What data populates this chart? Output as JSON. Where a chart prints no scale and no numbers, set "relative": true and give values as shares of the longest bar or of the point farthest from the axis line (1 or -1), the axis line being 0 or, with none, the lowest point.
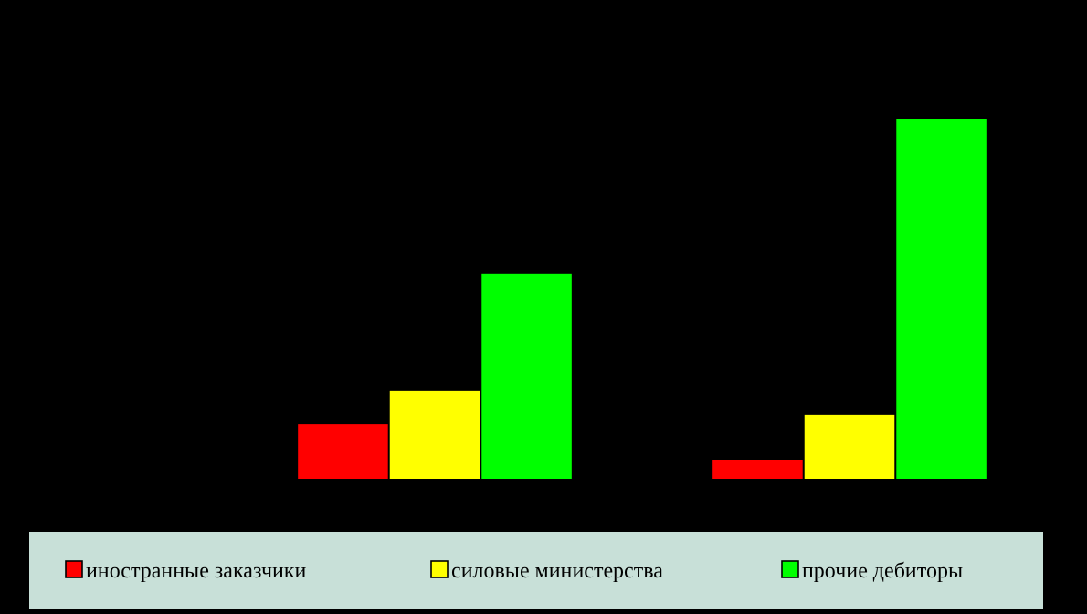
{
  "chart_data": {
    "type": "bar",
    "relative": true,
    "categories": [
      null,
      null
    ],
    "series": [
      {
        "name": "иностранные заказчики",
        "color": "#ff0000",
        "values": [
          0.152,
          0.051
        ]
      },
      {
        "name": "силовые министерства",
        "color": "#ffff00",
        "values": [
          0.244,
          0.178
        ]
      },
      {
        "name": "прочие дебиторы",
        "color": "#00ff00",
        "values": [
          0.569,
          1
        ]
      }
    ],
    "legend": "bottom"
  }
}
